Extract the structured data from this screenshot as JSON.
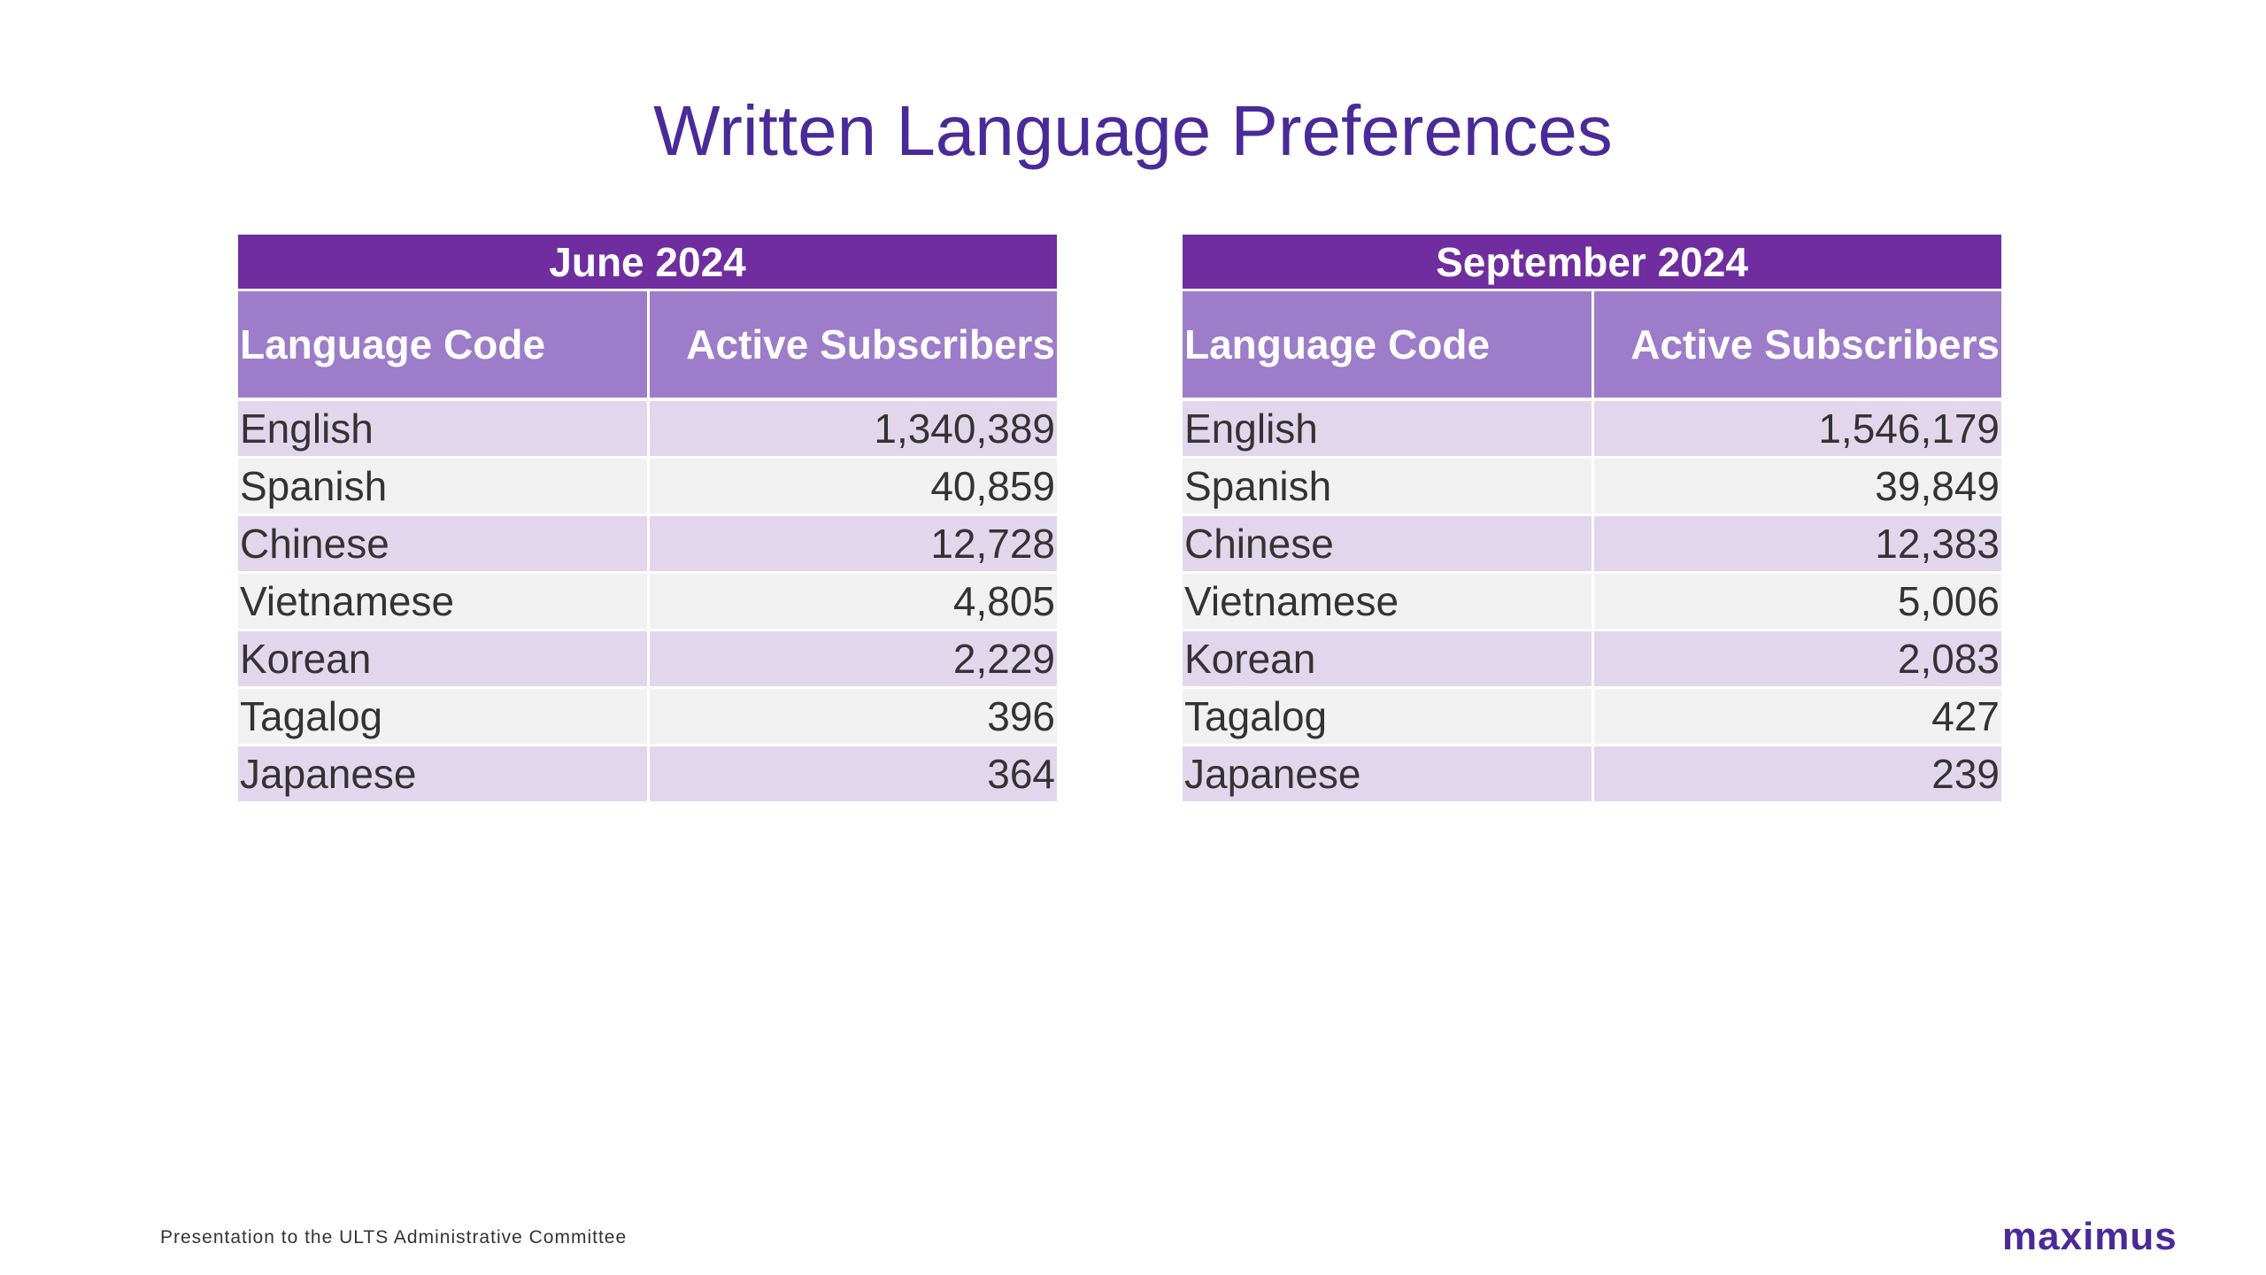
{
  "title": "Written Language Preferences",
  "tables": [
    {
      "period": "June 2024",
      "columns": [
        "Language Code",
        "Active Subscribers"
      ],
      "rows": [
        {
          "language": "English",
          "subscribers": "1,340,389"
        },
        {
          "language": "Spanish",
          "subscribers": "40,859"
        },
        {
          "language": "Chinese",
          "subscribers": "12,728"
        },
        {
          "language": "Vietnamese",
          "subscribers": "4,805"
        },
        {
          "language": "Korean",
          "subscribers": "2,229"
        },
        {
          "language": "Tagalog",
          "subscribers": "396"
        },
        {
          "language": "Japanese",
          "subscribers": "364"
        }
      ]
    },
    {
      "period": "September 2024",
      "columns": [
        "Language Code",
        "Active Subscribers"
      ],
      "rows": [
        {
          "language": "English",
          "subscribers": "1,546,179"
        },
        {
          "language": "Spanish",
          "subscribers": "39,849"
        },
        {
          "language": "Chinese",
          "subscribers": "12,383"
        },
        {
          "language": "Vietnamese",
          "subscribers": "5,006"
        },
        {
          "language": "Korean",
          "subscribers": "2,083"
        },
        {
          "language": "Tagalog",
          "subscribers": "427"
        },
        {
          "language": "Japanese",
          "subscribers": "239"
        }
      ]
    }
  ],
  "footer": {
    "text": "Presentation to the ULTS Administrative Committee",
    "brand": "maximus"
  },
  "colors": {
    "title": "#4a2a99",
    "period_header": "#6f2da0",
    "column_header": "#9d7cc9",
    "row_odd": "#e2d6ec",
    "row_even": "#f1f1f1"
  }
}
